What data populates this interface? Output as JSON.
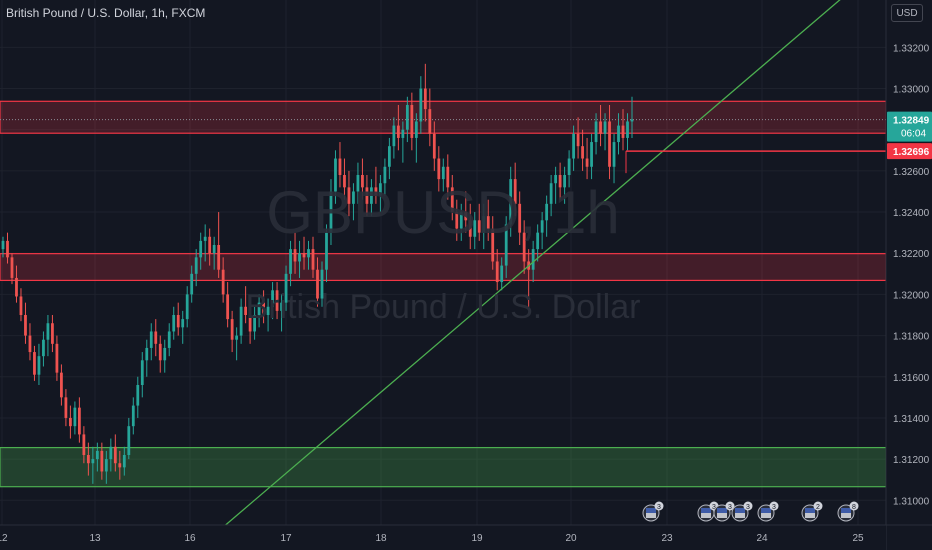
{
  "header": {
    "title": "British Pound / U.S. Dollar, 1h, FXCM",
    "currency_button": "USD"
  },
  "watermark": {
    "symbol": "GBPUSD, 1h",
    "name": "British Pound / U.S. Dollar"
  },
  "chart_data": {
    "type": "candlestick",
    "y_ticks": [
      "1.33200",
      "1.33000",
      "1.32800",
      "1.32600",
      "1.32400",
      "1.32200",
      "1.32000",
      "1.31800",
      "1.31600",
      "1.31400",
      "1.31200",
      "1.31000"
    ],
    "y_tick_values": [
      1.332,
      1.33,
      1.328,
      1.326,
      1.324,
      1.322,
      1.32,
      1.318,
      1.316,
      1.314,
      1.312,
      1.31
    ],
    "ylim": [
      1.3088,
      1.3343
    ],
    "x_ticks": [
      "12",
      "13",
      "16",
      "17",
      "18",
      "19",
      "20",
      "23",
      "24",
      "25"
    ],
    "last_price": {
      "value": "1.32849",
      "countdown": "06:04",
      "color": "#26a69a"
    },
    "level_label": {
      "value": "1.32696",
      "color": "#f23645"
    },
    "zones": [
      {
        "name": "resistance-zone-upper",
        "from": 1.32783,
        "to": 1.32938,
        "color": "#f23645"
      },
      {
        "name": "resistance-zone-middle",
        "from": 1.32068,
        "to": 1.32198,
        "color": "#f23645"
      },
      {
        "name": "support-zone",
        "from": 1.31066,
        "to": 1.31256,
        "color": "#4caf50"
      }
    ],
    "horizontal_line": {
      "value": 1.32696,
      "from_x_tick": "20",
      "color": "#f23645"
    },
    "trendline": {
      "points": [
        [
          1.309,
          "16"
        ],
        [
          1.3343,
          "24"
        ]
      ],
      "color": "#4caf50"
    },
    "events": [
      {
        "count": "3"
      },
      {
        "count": "3"
      },
      {
        "count": "3"
      },
      {
        "count": "3"
      },
      {
        "count": "3"
      },
      {
        "count": "2"
      },
      {
        "count": "8"
      }
    ],
    "colors": {
      "up": "#26a69a",
      "down": "#ef5350",
      "background": "#131722",
      "grid": "#1e222d",
      "text": "#b2b5be"
    },
    "candles": [
      [
        1.3222,
        1.3228,
        1.3218,
        1.3226
      ],
      [
        1.3226,
        1.323,
        1.3215,
        1.3218
      ],
      [
        1.3218,
        1.322,
        1.3205,
        1.3208
      ],
      [
        1.3208,
        1.3214,
        1.3196,
        1.3199
      ],
      [
        1.3199,
        1.3203,
        1.3187,
        1.319
      ],
      [
        1.319,
        1.3196,
        1.3176,
        1.318
      ],
      [
        1.318,
        1.3186,
        1.3168,
        1.3172
      ],
      [
        1.3172,
        1.3175,
        1.3158,
        1.3161
      ],
      [
        1.3161,
        1.3176,
        1.3156,
        1.317
      ],
      [
        1.317,
        1.3182,
        1.3165,
        1.3178
      ],
      [
        1.3178,
        1.319,
        1.317,
        1.3186
      ],
      [
        1.3186,
        1.319,
        1.3172,
        1.3176
      ],
      [
        1.3176,
        1.318,
        1.3158,
        1.3162
      ],
      [
        1.3162,
        1.3166,
        1.3146,
        1.315
      ],
      [
        1.315,
        1.3154,
        1.3136,
        1.314
      ],
      [
        1.314,
        1.3146,
        1.313,
        1.3136
      ],
      [
        1.3136,
        1.3148,
        1.3132,
        1.3145
      ],
      [
        1.3145,
        1.315,
        1.3128,
        1.3132
      ],
      [
        1.3132,
        1.3136,
        1.3118,
        1.3122
      ],
      [
        1.3122,
        1.3128,
        1.3112,
        1.3118
      ],
      [
        1.3118,
        1.3126,
        1.3108,
        1.312
      ],
      [
        1.312,
        1.3128,
        1.3114,
        1.3124
      ],
      [
        1.3124,
        1.3128,
        1.311,
        1.3114
      ],
      [
        1.3114,
        1.3124,
        1.3108,
        1.312
      ],
      [
        1.312,
        1.313,
        1.3114,
        1.3126
      ],
      [
        1.3126,
        1.3132,
        1.3114,
        1.3118
      ],
      [
        1.3118,
        1.3124,
        1.311,
        1.3116
      ],
      [
        1.3116,
        1.3126,
        1.3112,
        1.3122
      ],
      [
        1.3122,
        1.314,
        1.312,
        1.3136
      ],
      [
        1.3136,
        1.315,
        1.3132,
        1.3146
      ],
      [
        1.3146,
        1.316,
        1.314,
        1.3156
      ],
      [
        1.3156,
        1.3172,
        1.315,
        1.3168
      ],
      [
        1.3168,
        1.3178,
        1.316,
        1.3174
      ],
      [
        1.3174,
        1.3186,
        1.3168,
        1.3182
      ],
      [
        1.3182,
        1.3188,
        1.317,
        1.3176
      ],
      [
        1.3176,
        1.318,
        1.3162,
        1.3168
      ],
      [
        1.3168,
        1.3178,
        1.3162,
        1.3174
      ],
      [
        1.3174,
        1.3186,
        1.317,
        1.3182
      ],
      [
        1.3182,
        1.3194,
        1.3178,
        1.319
      ],
      [
        1.319,
        1.3196,
        1.318,
        1.3184
      ],
      [
        1.3184,
        1.3192,
        1.3176,
        1.3188
      ],
      [
        1.3188,
        1.3204,
        1.3184,
        1.32
      ],
      [
        1.32,
        1.3214,
        1.3196,
        1.321
      ],
      [
        1.321,
        1.3222,
        1.3204,
        1.3218
      ],
      [
        1.3218,
        1.323,
        1.3212,
        1.3226
      ],
      [
        1.3226,
        1.3234,
        1.3216,
        1.3228
      ],
      [
        1.3228,
        1.3232,
        1.3214,
        1.322
      ],
      [
        1.322,
        1.3228,
        1.3212,
        1.3224
      ],
      [
        1.3224,
        1.324,
        1.3208,
        1.3212
      ],
      [
        1.3212,
        1.3218,
        1.3196,
        1.32
      ],
      [
        1.32,
        1.3206,
        1.3184,
        1.3188
      ],
      [
        1.3188,
        1.3192,
        1.3172,
        1.3178
      ],
      [
        1.3178,
        1.3184,
        1.3168,
        1.318
      ],
      [
        1.318,
        1.3198,
        1.3176,
        1.3194
      ],
      [
        1.3194,
        1.3204,
        1.3186,
        1.319
      ],
      [
        1.319,
        1.3196,
        1.3176,
        1.3182
      ],
      [
        1.3182,
        1.3194,
        1.3178,
        1.319
      ],
      [
        1.319,
        1.32,
        1.3184,
        1.3196
      ],
      [
        1.3196,
        1.3202,
        1.3186,
        1.319
      ],
      [
        1.319,
        1.3198,
        1.3182,
        1.3194
      ],
      [
        1.3194,
        1.3206,
        1.3188,
        1.3202
      ],
      [
        1.3202,
        1.3206,
        1.3188,
        1.3192
      ],
      [
        1.3192,
        1.32,
        1.3182,
        1.3196
      ],
      [
        1.3196,
        1.3214,
        1.3192,
        1.321
      ],
      [
        1.321,
        1.3226,
        1.3204,
        1.3222
      ],
      [
        1.3222,
        1.323,
        1.321,
        1.3216
      ],
      [
        1.3216,
        1.3226,
        1.3208,
        1.322
      ],
      [
        1.322,
        1.3228,
        1.3212,
        1.3218
      ],
      [
        1.3218,
        1.3226,
        1.3212,
        1.3222
      ],
      [
        1.3222,
        1.3228,
        1.3208,
        1.3212
      ],
      [
        1.3212,
        1.3218,
        1.3194,
        1.3198
      ],
      [
        1.3198,
        1.3216,
        1.3194,
        1.3212
      ],
      [
        1.3212,
        1.3234,
        1.3206,
        1.323
      ],
      [
        1.323,
        1.3256,
        1.3224,
        1.325
      ],
      [
        1.325,
        1.327,
        1.3244,
        1.3266
      ],
      [
        1.3266,
        1.3274,
        1.3252,
        1.3258
      ],
      [
        1.3258,
        1.3266,
        1.3246,
        1.3252
      ],
      [
        1.3252,
        1.326,
        1.3238,
        1.3244
      ],
      [
        1.3244,
        1.3254,
        1.3236,
        1.325
      ],
      [
        1.325,
        1.3264,
        1.3244,
        1.3258
      ],
      [
        1.3258,
        1.3266,
        1.3246,
        1.3252
      ],
      [
        1.3252,
        1.3258,
        1.3238,
        1.3244
      ],
      [
        1.3244,
        1.3256,
        1.3238,
        1.3252
      ],
      [
        1.3252,
        1.3262,
        1.3244,
        1.3248
      ],
      [
        1.3248,
        1.3258,
        1.324,
        1.3254
      ],
      [
        1.3254,
        1.3266,
        1.3248,
        1.3262
      ],
      [
        1.3262,
        1.3276,
        1.3256,
        1.3272
      ],
      [
        1.3272,
        1.3286,
        1.3266,
        1.3282
      ],
      [
        1.3282,
        1.3292,
        1.327,
        1.3276
      ],
      [
        1.3276,
        1.3284,
        1.3264,
        1.328
      ],
      [
        1.328,
        1.3296,
        1.3274,
        1.3292
      ],
      [
        1.3292,
        1.3298,
        1.327,
        1.3276
      ],
      [
        1.3276,
        1.3288,
        1.3264,
        1.3284
      ],
      [
        1.3284,
        1.3306,
        1.3278,
        1.33
      ],
      [
        1.33,
        1.3312,
        1.3284,
        1.329
      ],
      [
        1.329,
        1.33,
        1.3272,
        1.3278
      ],
      [
        1.3278,
        1.3284,
        1.326,
        1.3266
      ],
      [
        1.3266,
        1.3272,
        1.325,
        1.3256
      ],
      [
        1.3256,
        1.3266,
        1.325,
        1.3262
      ],
      [
        1.3262,
        1.3268,
        1.3246,
        1.3252
      ],
      [
        1.3252,
        1.3258,
        1.3236,
        1.324
      ],
      [
        1.324,
        1.3246,
        1.3226,
        1.3232
      ],
      [
        1.3232,
        1.3244,
        1.3226,
        1.324
      ],
      [
        1.324,
        1.325,
        1.323,
        1.3236
      ],
      [
        1.3236,
        1.3244,
        1.3222,
        1.3228
      ],
      [
        1.3228,
        1.324,
        1.3222,
        1.3236
      ],
      [
        1.3236,
        1.3244,
        1.3226,
        1.323
      ],
      [
        1.323,
        1.3244,
        1.3222,
        1.3238
      ],
      [
        1.3238,
        1.3246,
        1.3226,
        1.3232
      ],
      [
        1.3232,
        1.3238,
        1.3212,
        1.3216
      ],
      [
        1.3216,
        1.3222,
        1.3202,
        1.3206
      ],
      [
        1.3206,
        1.3218,
        1.3202,
        1.3214
      ],
      [
        1.3214,
        1.3238,
        1.3208,
        1.3234
      ],
      [
        1.3234,
        1.3262,
        1.3228,
        1.3256
      ],
      [
        1.3256,
        1.3264,
        1.3238,
        1.3244
      ],
      [
        1.3244,
        1.325,
        1.3224,
        1.323
      ],
      [
        1.323,
        1.3236,
        1.321,
        1.3216
      ],
      [
        1.3216,
        1.3222,
        1.3194,
        1.3212
      ],
      [
        1.3212,
        1.3226,
        1.3206,
        1.3222
      ],
      [
        1.3222,
        1.3234,
        1.3216,
        1.323
      ],
      [
        1.323,
        1.324,
        1.3222,
        1.3236
      ],
      [
        1.3236,
        1.3248,
        1.3228,
        1.3244
      ],
      [
        1.3244,
        1.3258,
        1.3238,
        1.3254
      ],
      [
        1.3254,
        1.3262,
        1.3244,
        1.3258
      ],
      [
        1.3258,
        1.3264,
        1.3246,
        1.3252
      ],
      [
        1.3252,
        1.3262,
        1.3244,
        1.3258
      ],
      [
        1.3258,
        1.327,
        1.3252,
        1.3266
      ],
      [
        1.3266,
        1.3282,
        1.326,
        1.3278
      ],
      [
        1.3278,
        1.3286,
        1.3266,
        1.3272
      ],
      [
        1.3272,
        1.328,
        1.326,
        1.3266
      ],
      [
        1.3266,
        1.3276,
        1.3256,
        1.3262
      ],
      [
        1.3262,
        1.3278,
        1.3256,
        1.3274
      ],
      [
        1.3274,
        1.3288,
        1.3268,
        1.3284
      ],
      [
        1.3284,
        1.3292,
        1.3272,
        1.3278
      ],
      [
        1.3278,
        1.3288,
        1.327,
        1.3284
      ],
      [
        1.3284,
        1.3292,
        1.3256,
        1.3262
      ],
      [
        1.3262,
        1.3278,
        1.3254,
        1.3274
      ],
      [
        1.3274,
        1.3288,
        1.3268,
        1.3282
      ],
      [
        1.3282,
        1.329,
        1.327,
        1.3276
      ],
      [
        1.3276,
        1.3288,
        1.327,
        1.3284
      ],
      [
        1.3284,
        1.3296,
        1.3276,
        1.3285
      ]
    ]
  }
}
